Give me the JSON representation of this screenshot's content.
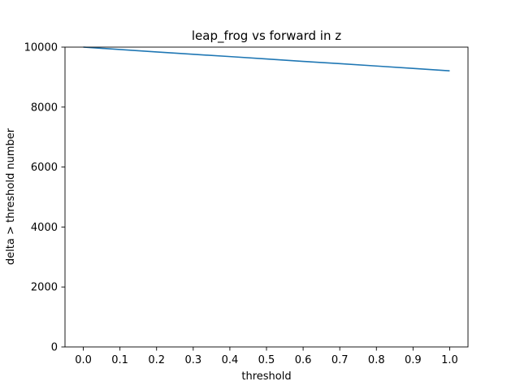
{
  "chart_data": {
    "type": "line",
    "title": "leap_frog vs forward in z",
    "xlabel": "threshold",
    "ylabel": "delta > threshold number",
    "xlim": [
      -0.05,
      1.05
    ],
    "ylim": [
      0,
      10000
    ],
    "xticks": [
      0.0,
      0.1,
      0.2,
      0.3,
      0.4,
      0.5,
      0.6,
      0.7,
      0.8,
      0.9,
      1.0
    ],
    "xtick_labels": [
      "0.0",
      "0.1",
      "0.2",
      "0.3",
      "0.4",
      "0.5",
      "0.6",
      "0.7",
      "0.8",
      "0.9",
      "1.0"
    ],
    "yticks": [
      0,
      2000,
      4000,
      6000,
      8000,
      10000
    ],
    "ytick_labels": [
      "0",
      "2000",
      "4000",
      "6000",
      "8000",
      "10000"
    ],
    "grid": false,
    "series": [
      {
        "color": "#1f77b4",
        "x": [
          0.0,
          0.1,
          0.2,
          0.3,
          0.4,
          0.5,
          0.6,
          0.7,
          0.8,
          0.9,
          1.0
        ],
        "y": [
          10000,
          9920,
          9840,
          9760,
          9685,
          9605,
          9525,
          9450,
          9370,
          9290,
          9210
        ]
      }
    ]
  }
}
